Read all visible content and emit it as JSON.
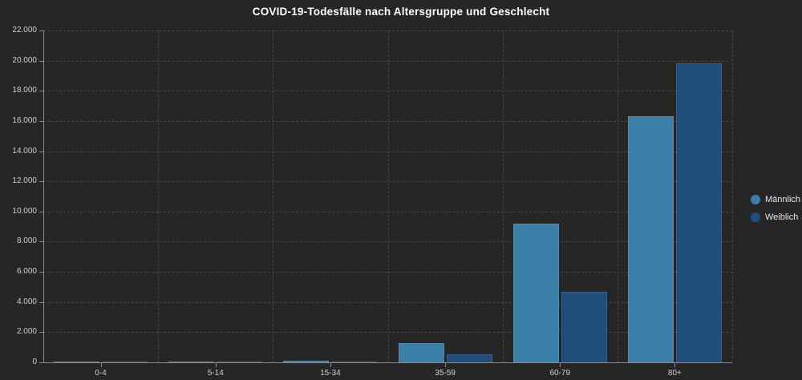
{
  "page": {
    "background_color": "#262626",
    "grid_color": "#474747",
    "axis_color": "#8a8a8a",
    "tick_label_color": "#cfcfcf"
  },
  "chart_data": {
    "type": "bar",
    "title": "COVID-19-Todesfälle nach Altersgruppe und Geschlecht",
    "xlabel": "",
    "ylabel": "",
    "categories": [
      "0-4",
      "5-14",
      "15-34",
      "35-59",
      "60-79",
      "80+"
    ],
    "series": [
      {
        "name": "Männlich",
        "color": "#3a80a8",
        "values": [
          25,
          10,
          110,
          1250,
          9200,
          16300
        ]
      },
      {
        "name": "Weiblich",
        "color": "#1f4e7d",
        "values": [
          15,
          5,
          65,
          550,
          4700,
          19800
        ]
      }
    ],
    "ylim": [
      0,
      22000
    ],
    "y_tick_step": 2000,
    "y_tick_labels": [
      "0",
      "2.000",
      "4.000",
      "6.000",
      "8.000",
      "10.000",
      "12.000",
      "14.000",
      "16.000",
      "18.000",
      "20.000",
      "22.000"
    ],
    "grid": "dashed",
    "legend_position": "right"
  },
  "legend": {
    "items": [
      {
        "label": "Männlich",
        "color": "#3a80a8"
      },
      {
        "label": "Weiblich",
        "color": "#1f4e7d"
      }
    ]
  }
}
